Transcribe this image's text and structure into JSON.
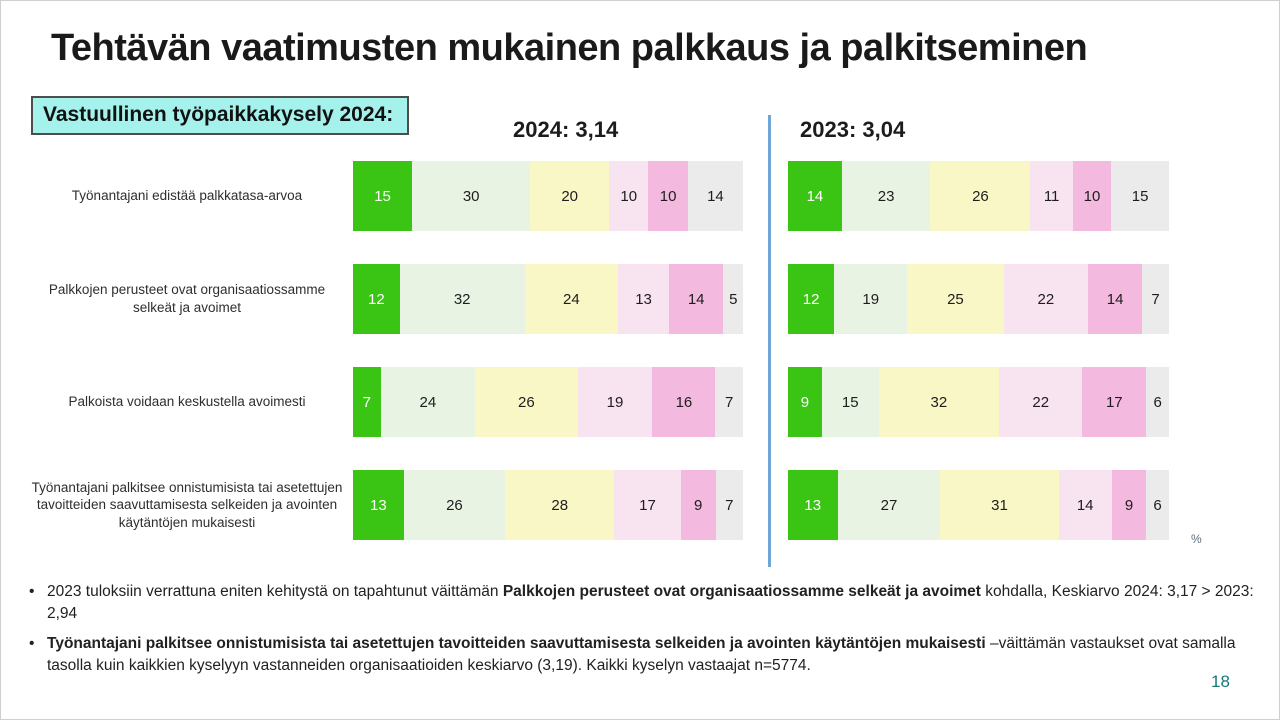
{
  "slide": {
    "title": "Tehtävän vaatimusten mukainen palkkaus ja palkitseminen",
    "badge": "Vastuullinen työpaikkakysely 2024:",
    "percent_label": "%",
    "page_number": "18"
  },
  "chart_data": {
    "type": "bar",
    "subtype": "horizontal-100-stacked",
    "unit": "%",
    "legend_position": "none",
    "grid": false,
    "categories": [
      "Työnantajani edistää palkkatasa-arvoa",
      "Palkkojen perusteet ovat organisaatiossamme selkeät ja avoimet",
      "Palkoista voidaan keskustella avoimesti",
      "Työnantajani palkitsee onnistumisista tai asetettujen tavoitteiden saavuttamisesta selkeiden ja avointen käytäntöjen mukaisesti"
    ],
    "segment_colors": [
      "#3ac414",
      "#e9f3e4",
      "#faf7c6",
      "#f8e3f1",
      "#f4b9df",
      "#ebebeb"
    ],
    "charts": [
      {
        "title": "2024: 3,14",
        "rows": [
          [
            15,
            30,
            20,
            10,
            10,
            14
          ],
          [
            12,
            32,
            24,
            13,
            14,
            5
          ],
          [
            7,
            24,
            26,
            19,
            16,
            7
          ],
          [
            13,
            26,
            28,
            17,
            9,
            7
          ]
        ]
      },
      {
        "title": "2023: 3,04",
        "rows": [
          [
            14,
            23,
            26,
            11,
            10,
            15
          ],
          [
            12,
            19,
            25,
            22,
            14,
            7
          ],
          [
            9,
            15,
            32,
            22,
            17,
            6
          ],
          [
            13,
            27,
            31,
            14,
            9,
            6
          ]
        ]
      }
    ]
  },
  "notes": {
    "bullet1_pre": "2023 tuloksiin verrattuna eniten kehitystä on tapahtunut väittämän ",
    "bullet1_bold": "Palkkojen perusteet ovat organisaatiossamme selkeät ja avoimet",
    "bullet1_post": " kohdalla, Keskiarvo 2024: 3,17 > 2023: 2,94",
    "bullet2_bold": "Työnantajani palkitsee onnistumisista tai asetettujen tavoitteiden saavuttamisesta selkeiden ja avointen käytäntöjen mukaisesti",
    "bullet2_post": " –väittämän vastaukset ovat samalla tasolla kuin kaikkien kyselyyn vastanneiden organisaatioiden keskiarvo (3,19). Kaikki kyselyn vastaajat n=5774."
  }
}
